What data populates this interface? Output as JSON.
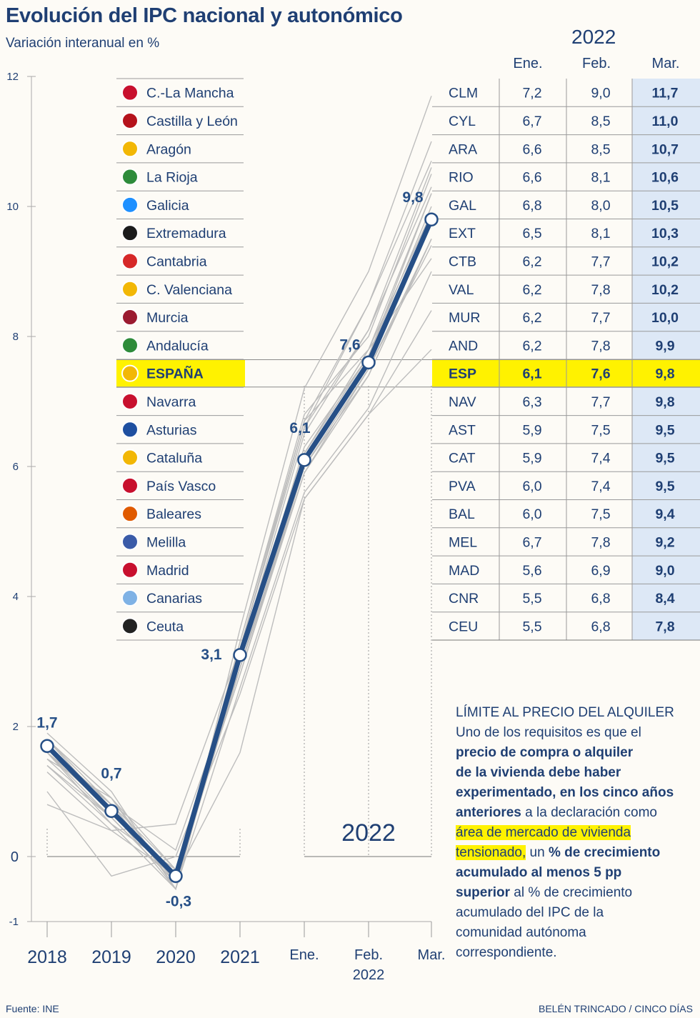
{
  "header": {
    "title": "Evolución del IPC nacional y autonómico",
    "subtitle": "Variación interanual en %"
  },
  "table": {
    "year": "2022",
    "columns": [
      "Ene.",
      "Feb.",
      "Mar."
    ],
    "rows": [
      {
        "name": "C.-La Mancha",
        "code": "CLM",
        "ene": "7,2",
        "feb": "9,0",
        "mar": "11,7",
        "highlight": false
      },
      {
        "name": "Castilla y León",
        "code": "CYL",
        "ene": "6,7",
        "feb": "8,5",
        "mar": "11,0",
        "highlight": false
      },
      {
        "name": "Aragón",
        "code": "ARA",
        "ene": "6,6",
        "feb": "8,5",
        "mar": "10,7",
        "highlight": false
      },
      {
        "name": "La Rioja",
        "code": "RIO",
        "ene": "6,6",
        "feb": "8,1",
        "mar": "10,6",
        "highlight": false
      },
      {
        "name": "Galicia",
        "code": "GAL",
        "ene": "6,8",
        "feb": "8,0",
        "mar": "10,5",
        "highlight": false
      },
      {
        "name": "Extremadura",
        "code": "EXT",
        "ene": "6,5",
        "feb": "8,1",
        "mar": "10,3",
        "highlight": false
      },
      {
        "name": "Cantabria",
        "code": "CTB",
        "ene": "6,2",
        "feb": "7,7",
        "mar": "10,2",
        "highlight": false
      },
      {
        "name": "C. Valenciana",
        "code": "VAL",
        "ene": "6,2",
        "feb": "7,8",
        "mar": "10,2",
        "highlight": false
      },
      {
        "name": "Murcia",
        "code": "MUR",
        "ene": "6,2",
        "feb": "7,7",
        "mar": "10,0",
        "highlight": false
      },
      {
        "name": "Andalucía",
        "code": "AND",
        "ene": "6,2",
        "feb": "7,8",
        "mar": "9,9",
        "highlight": false
      },
      {
        "name": "ESPAÑA",
        "code": "ESP",
        "ene": "6,1",
        "feb": "7,6",
        "mar": "9,8",
        "highlight": true
      },
      {
        "name": "Navarra",
        "code": "NAV",
        "ene": "6,3",
        "feb": "7,7",
        "mar": "9,8",
        "highlight": false
      },
      {
        "name": "Asturias",
        "code": "AST",
        "ene": "5,9",
        "feb": "7,5",
        "mar": "9,5",
        "highlight": false
      },
      {
        "name": "Cataluña",
        "code": "CAT",
        "ene": "5,9",
        "feb": "7,4",
        "mar": "9,5",
        "highlight": false
      },
      {
        "name": "País Vasco",
        "code": "PVA",
        "ene": "6,0",
        "feb": "7,4",
        "mar": "9,5",
        "highlight": false
      },
      {
        "name": "Baleares",
        "code": "BAL",
        "ene": "6,0",
        "feb": "7,5",
        "mar": "9,4",
        "highlight": false
      },
      {
        "name": "Melilla",
        "code": "MEL",
        "ene": "6,7",
        "feb": "7,8",
        "mar": "9,2",
        "highlight": false
      },
      {
        "name": "Madrid",
        "code": "MAD",
        "ene": "5,6",
        "feb": "6,9",
        "mar": "9,0",
        "highlight": false
      },
      {
        "name": "Canarias",
        "code": "CNR",
        "ene": "5,5",
        "feb": "6,8",
        "mar": "8,4",
        "highlight": false
      },
      {
        "name": "Ceuta",
        "code": "CEU",
        "ene": "5,5",
        "feb": "6,8",
        "mar": "7,8",
        "highlight": false
      }
    ]
  },
  "chart_data": {
    "type": "line",
    "title": "Evolución del IPC nacional y autonómico",
    "ylabel": "Variación interanual en %",
    "x": [
      "2018",
      "2019",
      "2020",
      "2021",
      "Ene.",
      "Feb.",
      "Mar."
    ],
    "x_tick_labels": [
      "2018",
      "2019",
      "2020",
      "2021",
      "Ene.",
      "Feb.",
      "Mar."
    ],
    "x_group_label": "2022",
    "ylim": [
      -1,
      12
    ],
    "yticks": [
      -1,
      0,
      2,
      4,
      6,
      8,
      10,
      12
    ],
    "ytick_labels": [
      "-1",
      "0",
      "2",
      "4",
      "6",
      "8",
      "10",
      "12"
    ],
    "main_series": {
      "name": "ESPAÑA",
      "values": [
        1.7,
        0.7,
        -0.3,
        3.1,
        6.1,
        7.6,
        9.8
      ],
      "labels": [
        "1,7",
        "0,7",
        "-0,3",
        "3,1",
        "6,1",
        "7,6",
        "9,8"
      ]
    },
    "regional_series": [
      {
        "name": "CLM",
        "values": [
          1.9,
          1.0,
          -0.5,
          3.5,
          7.2,
          9.0,
          11.7
        ]
      },
      {
        "name": "CYL",
        "values": [
          1.8,
          0.9,
          -0.4,
          3.3,
          6.7,
          8.5,
          11.0
        ]
      },
      {
        "name": "ARA",
        "values": [
          1.7,
          0.8,
          -0.4,
          3.2,
          6.6,
          8.5,
          10.7
        ]
      },
      {
        "name": "RIO",
        "values": [
          1.6,
          0.8,
          -0.4,
          3.2,
          6.6,
          8.1,
          10.6
        ]
      },
      {
        "name": "GAL",
        "values": [
          1.7,
          0.7,
          -0.5,
          3.3,
          6.8,
          8.0,
          10.5
        ]
      },
      {
        "name": "EXT",
        "values": [
          1.5,
          0.9,
          -0.5,
          3.1,
          6.5,
          8.1,
          10.3
        ]
      },
      {
        "name": "CTB",
        "values": [
          1.6,
          0.6,
          -0.4,
          3.0,
          6.2,
          7.7,
          10.2
        ]
      },
      {
        "name": "VAL",
        "values": [
          1.8,
          0.7,
          -0.3,
          3.0,
          6.2,
          7.8,
          10.2
        ]
      },
      {
        "name": "MUR",
        "values": [
          1.4,
          0.6,
          -0.4,
          2.9,
          6.2,
          7.7,
          10.0
        ]
      },
      {
        "name": "AND",
        "values": [
          1.6,
          0.7,
          -0.3,
          2.9,
          6.2,
          7.8,
          9.9
        ]
      },
      {
        "name": "NAV",
        "values": [
          1.7,
          0.8,
          -0.2,
          3.0,
          6.3,
          7.7,
          9.8
        ]
      },
      {
        "name": "AST",
        "values": [
          1.5,
          0.6,
          -0.4,
          2.9,
          5.9,
          7.5,
          9.5
        ]
      },
      {
        "name": "CAT",
        "values": [
          1.8,
          0.9,
          -0.2,
          2.8,
          5.9,
          7.4,
          9.5
        ]
      },
      {
        "name": "PVA",
        "values": [
          1.8,
          0.8,
          0.1,
          2.9,
          6.0,
          7.4,
          9.5
        ]
      },
      {
        "name": "BAL",
        "values": [
          1.6,
          0.5,
          -0.2,
          2.8,
          6.0,
          7.5,
          9.4
        ]
      },
      {
        "name": "MEL",
        "values": [
          0.8,
          0.4,
          0.5,
          3.2,
          6.7,
          7.8,
          9.2
        ]
      },
      {
        "name": "MAD",
        "values": [
          1.4,
          0.5,
          -0.5,
          2.6,
          5.6,
          6.9,
          9.0
        ]
      },
      {
        "name": "CNR",
        "values": [
          1.0,
          -0.3,
          0.0,
          2.5,
          5.5,
          6.8,
          8.4
        ]
      },
      {
        "name": "CEU",
        "values": [
          1.3,
          0.4,
          -0.3,
          1.6,
          5.5,
          6.8,
          7.8
        ]
      }
    ]
  },
  "footnote": {
    "heading": "LÍMITE AL PRECIO DEL ALQUILER",
    "t1": "Uno de los requisitos es que el",
    "b1": "precio de compra o alquiler",
    "b2": "de la vivienda debe haber",
    "b3": "experimentado, en los cinco años",
    "b4": "anteriores",
    "t2": " a la declaración como",
    "hl1": "área de mercado de vivienda",
    "hl2": "tensionado,",
    "t3": " un ",
    "b5": "% de crecimiento",
    "b6": "acumulado al menos 5 pp",
    "b7": "superior",
    "t4": " al % de crecimiento",
    "t5": "acumulado del IPC de la",
    "t6": "comunidad autónoma",
    "t7": "correspondiente."
  },
  "footer": {
    "source": "Fuente: INE",
    "credit": "BELÉN TRINCADO / CINCO DÍAS"
  },
  "colors": {
    "navy": "#1f3f73",
    "main_line": "#264f86",
    "grey_line": "#bdbdbd",
    "highlight": "#fff200",
    "mar_column": "#dde8f6"
  }
}
